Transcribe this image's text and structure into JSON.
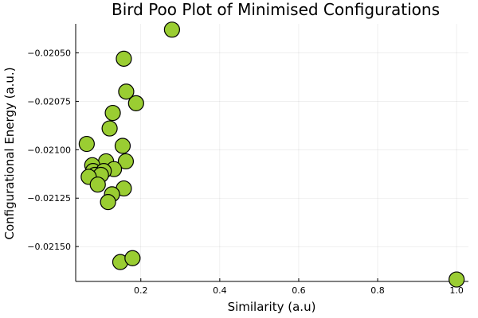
{
  "colors": {
    "marker": "#9ACD32",
    "marker_stroke": "#000000"
  },
  "chart_data": {
    "type": "scatter",
    "title": "Bird Poo Plot of Minimised Configurations",
    "xlabel": "Similarity (a.u)",
    "ylabel": "Configurational Energy (a.u.)",
    "xlim": [
      0.035,
      1.03
    ],
    "ylim": [
      -0.02168,
      -0.02035
    ],
    "grid": true,
    "legend": "none",
    "x_ticks": [
      0.2,
      0.4,
      0.6,
      0.8,
      1.0
    ],
    "x_tick_labels": [
      "0.2",
      "0.4",
      "0.6",
      "0.8",
      "1.0"
    ],
    "y_ticks": [
      -0.0205,
      -0.02075,
      -0.021,
      -0.02125,
      -0.0215
    ],
    "y_tick_labels": [
      "−0.02050",
      "−0.02075",
      "−0.02100",
      "−0.02125",
      "−0.02150"
    ],
    "points": [
      {
        "x": 0.279,
        "y": -0.02038
      },
      {
        "x": 0.157,
        "y": -0.02053
      },
      {
        "x": 0.163,
        "y": -0.0207
      },
      {
        "x": 0.188,
        "y": -0.02076
      },
      {
        "x": 0.129,
        "y": -0.02081
      },
      {
        "x": 0.121,
        "y": -0.02089
      },
      {
        "x": 0.063,
        "y": -0.02097
      },
      {
        "x": 0.154,
        "y": -0.02098
      },
      {
        "x": 0.112,
        "y": -0.02106
      },
      {
        "x": 0.162,
        "y": -0.02106
      },
      {
        "x": 0.077,
        "y": -0.02108
      },
      {
        "x": 0.079,
        "y": -0.02111
      },
      {
        "x": 0.132,
        "y": -0.0211
      },
      {
        "x": 0.106,
        "y": -0.02111
      },
      {
        "x": 0.084,
        "y": -0.02113
      },
      {
        "x": 0.099,
        "y": -0.02113
      },
      {
        "x": 0.068,
        "y": -0.02114
      },
      {
        "x": 0.091,
        "y": -0.02118
      },
      {
        "x": 0.157,
        "y": -0.0212
      },
      {
        "x": 0.127,
        "y": -0.02123
      },
      {
        "x": 0.117,
        "y": -0.02127
      },
      {
        "x": 0.148,
        "y": -0.02158
      },
      {
        "x": 0.179,
        "y": -0.02156
      },
      {
        "x": 1.0,
        "y": -0.02167
      }
    ]
  }
}
